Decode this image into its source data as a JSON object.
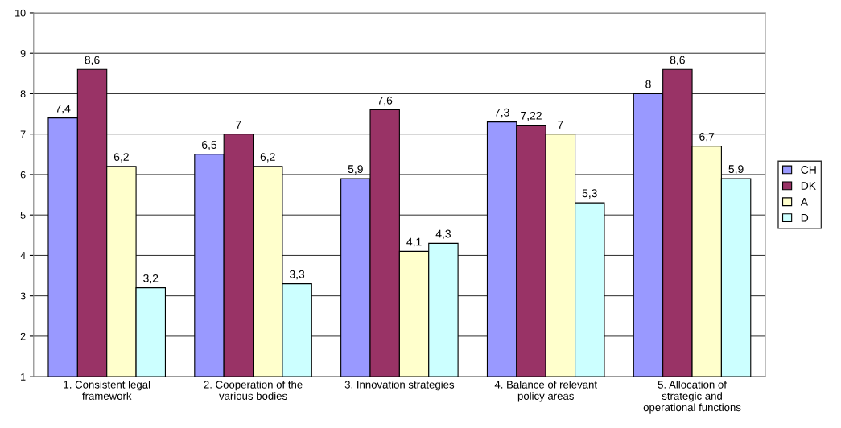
{
  "chart_data": {
    "type": "bar",
    "categories": [
      "1. Consistent legal\nframework",
      "2. Cooperation of the\nvarious bodies",
      "3. Innovation strategies",
      "4. Balance of relevant\npolicy areas",
      "5. Allocation of\nstrategic and\noperational functions"
    ],
    "series": [
      {
        "name": "CH",
        "color": "#9999ff",
        "values": [
          7.4,
          6.5,
          5.9,
          7.3,
          8
        ],
        "value_labels": [
          "7,4",
          "6,5",
          "5,9",
          "7,3",
          "8"
        ]
      },
      {
        "name": "DK",
        "color": "#993366",
        "values": [
          8.6,
          7,
          7.6,
          7.22,
          8.6
        ],
        "value_labels": [
          "8,6",
          "7",
          "7,6",
          "7,22",
          "8,6"
        ]
      },
      {
        "name": "A",
        "color": "#ffffcc",
        "values": [
          6.2,
          6.2,
          4.1,
          7,
          6.7
        ],
        "value_labels": [
          "6,2",
          "6,2",
          "4,1",
          "7",
          "6,7"
        ]
      },
      {
        "name": "D",
        "color": "#ccffff",
        "values": [
          3.2,
          3.3,
          4.3,
          5.3,
          5.9
        ],
        "value_labels": [
          "3,2",
          "3,3",
          "4,3",
          "5,3",
          "5,9"
        ]
      }
    ],
    "ylim": [
      1,
      10
    ],
    "yticks": [
      1,
      2,
      3,
      4,
      5,
      6,
      7,
      8,
      9,
      10
    ],
    "grid": "y",
    "legend": "right"
  }
}
